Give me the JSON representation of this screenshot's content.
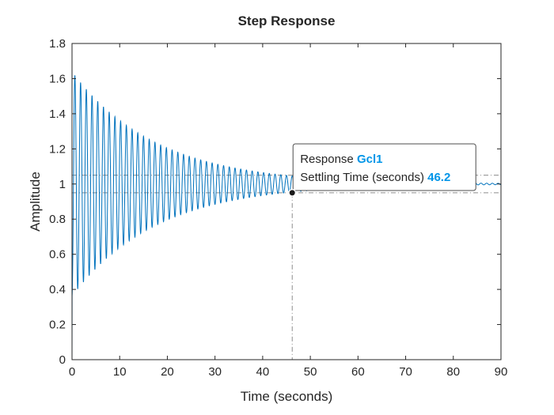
{
  "chart_data": {
    "type": "line",
    "title": "Step Response",
    "xlabel": "Time (seconds)",
    "ylabel": "Amplitude",
    "xlim": [
      0,
      90
    ],
    "ylim": [
      0,
      1.8
    ],
    "xticks": [
      0,
      10,
      20,
      30,
      40,
      50,
      60,
      70,
      80,
      90
    ],
    "yticks": [
      0,
      0.2,
      0.4,
      0.6,
      0.8,
      1,
      1.2,
      1.4,
      1.6,
      1.8
    ],
    "xtick_labels": [
      "0",
      "10",
      "20",
      "30",
      "40",
      "50",
      "60",
      "70",
      "80",
      "90"
    ],
    "ytick_labels": [
      "0",
      "0.2",
      "0.4",
      "0.6",
      "0.8",
      "1",
      "1.2",
      "1.4",
      "1.6",
      "1.8"
    ],
    "grid": false,
    "series": [
      {
        "name": "Gcl1",
        "color": "#0072bd",
        "model": {
          "final_value": 1,
          "peak_value": 1.64,
          "peak_time": 0.6,
          "oscillation_period": 1.2,
          "decay_rate": 0.0569,
          "t_start": 0,
          "t_end": 90
        }
      }
    ],
    "settling_band": [
      0.95,
      1.05
    ],
    "annotation": {
      "x": 46.2,
      "y": 0.95,
      "line1_label": "Response",
      "line1_value": "Gcl1",
      "line2_label": "Settling Time (seconds)",
      "line2_value": "46.2",
      "value_color": "#0095e8"
    }
  }
}
